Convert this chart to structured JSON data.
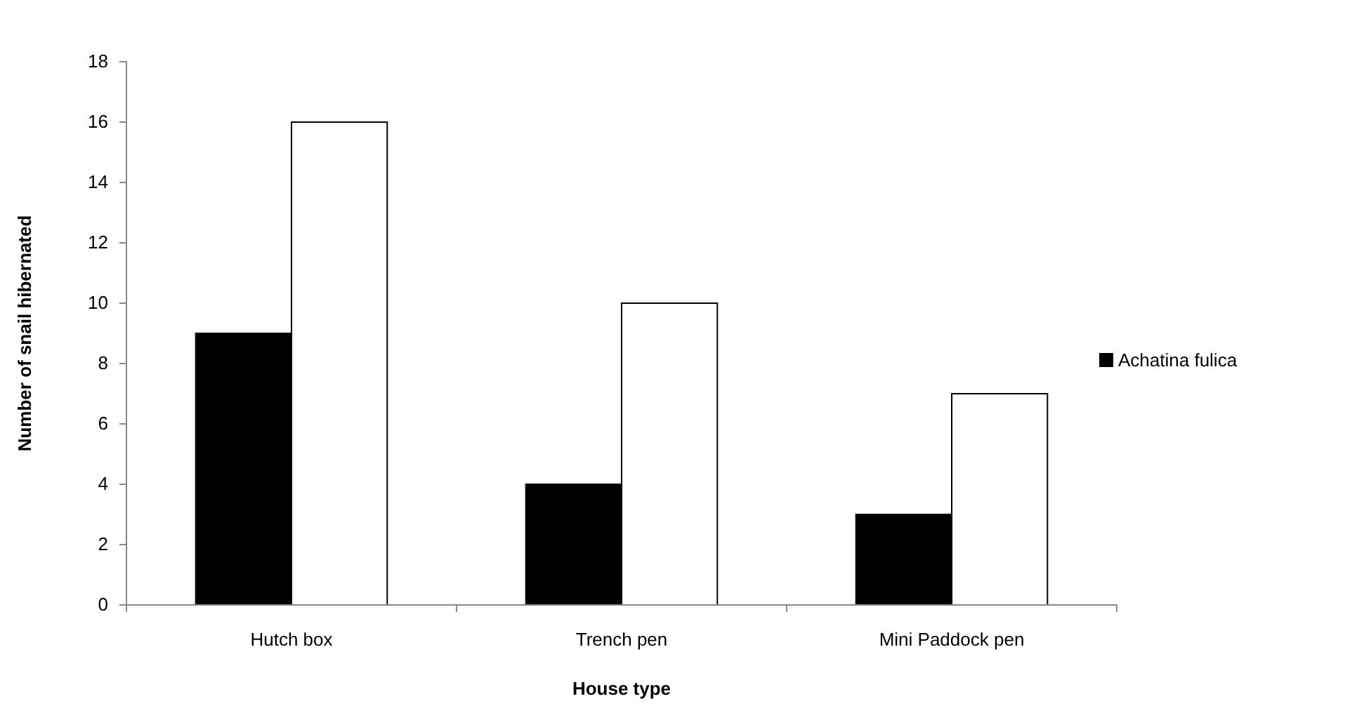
{
  "chart_data": {
    "type": "bar",
    "xlabel": "House type",
    "ylabel": "Number of snail hibernated",
    "categories": [
      "Hutch box",
      "Trench pen",
      "Mini Paddock pen"
    ],
    "series": [
      {
        "name": "Achatina fulica",
        "color": "#000000",
        "values": [
          9,
          4,
          3
        ]
      },
      {
        "color": "#ffffff",
        "values": [
          16,
          10,
          7
        ]
      }
    ],
    "ylim": [
      0,
      18
    ],
    "yticks": [
      0,
      2,
      4,
      6,
      8,
      10,
      12,
      14,
      16,
      18
    ],
    "grid": false,
    "legend": "right"
  }
}
